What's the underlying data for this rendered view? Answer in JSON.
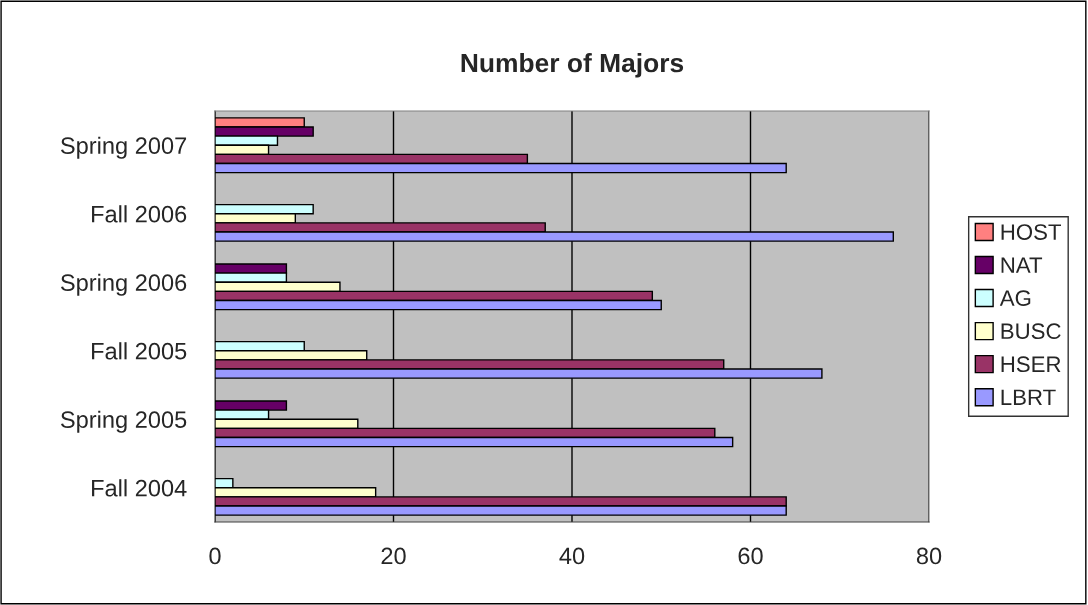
{
  "chart_data": {
    "type": "bar",
    "orientation": "horizontal",
    "title": "Number of Majors",
    "categories": [
      "Spring 2007",
      "Fall 2006",
      "Spring 2006",
      "Fall 2005",
      "Spring 2005",
      "Fall 2004"
    ],
    "series": [
      {
        "name": "HOST",
        "color": "#ff8080",
        "values": [
          10,
          null,
          null,
          null,
          null,
          null
        ]
      },
      {
        "name": "NAT",
        "color": "#660066",
        "values": [
          11,
          null,
          8,
          null,
          8,
          null
        ]
      },
      {
        "name": "AG",
        "color": "#ccffff",
        "values": [
          7,
          11,
          8,
          10,
          6,
          2
        ]
      },
      {
        "name": "BUSC",
        "color": "#ffffcc",
        "values": [
          6,
          9,
          14,
          17,
          16,
          18
        ]
      },
      {
        "name": "HSER",
        "color": "#993366",
        "values": [
          35,
          37,
          49,
          57,
          56,
          64
        ]
      },
      {
        "name": "LBRT",
        "color": "#9999ff",
        "values": [
          64,
          76,
          50,
          68,
          58,
          64
        ]
      }
    ],
    "xlim": [
      0,
      80
    ],
    "xticks": [
      0,
      20,
      40,
      60,
      80
    ],
    "grid": "x",
    "legend": "right"
  }
}
